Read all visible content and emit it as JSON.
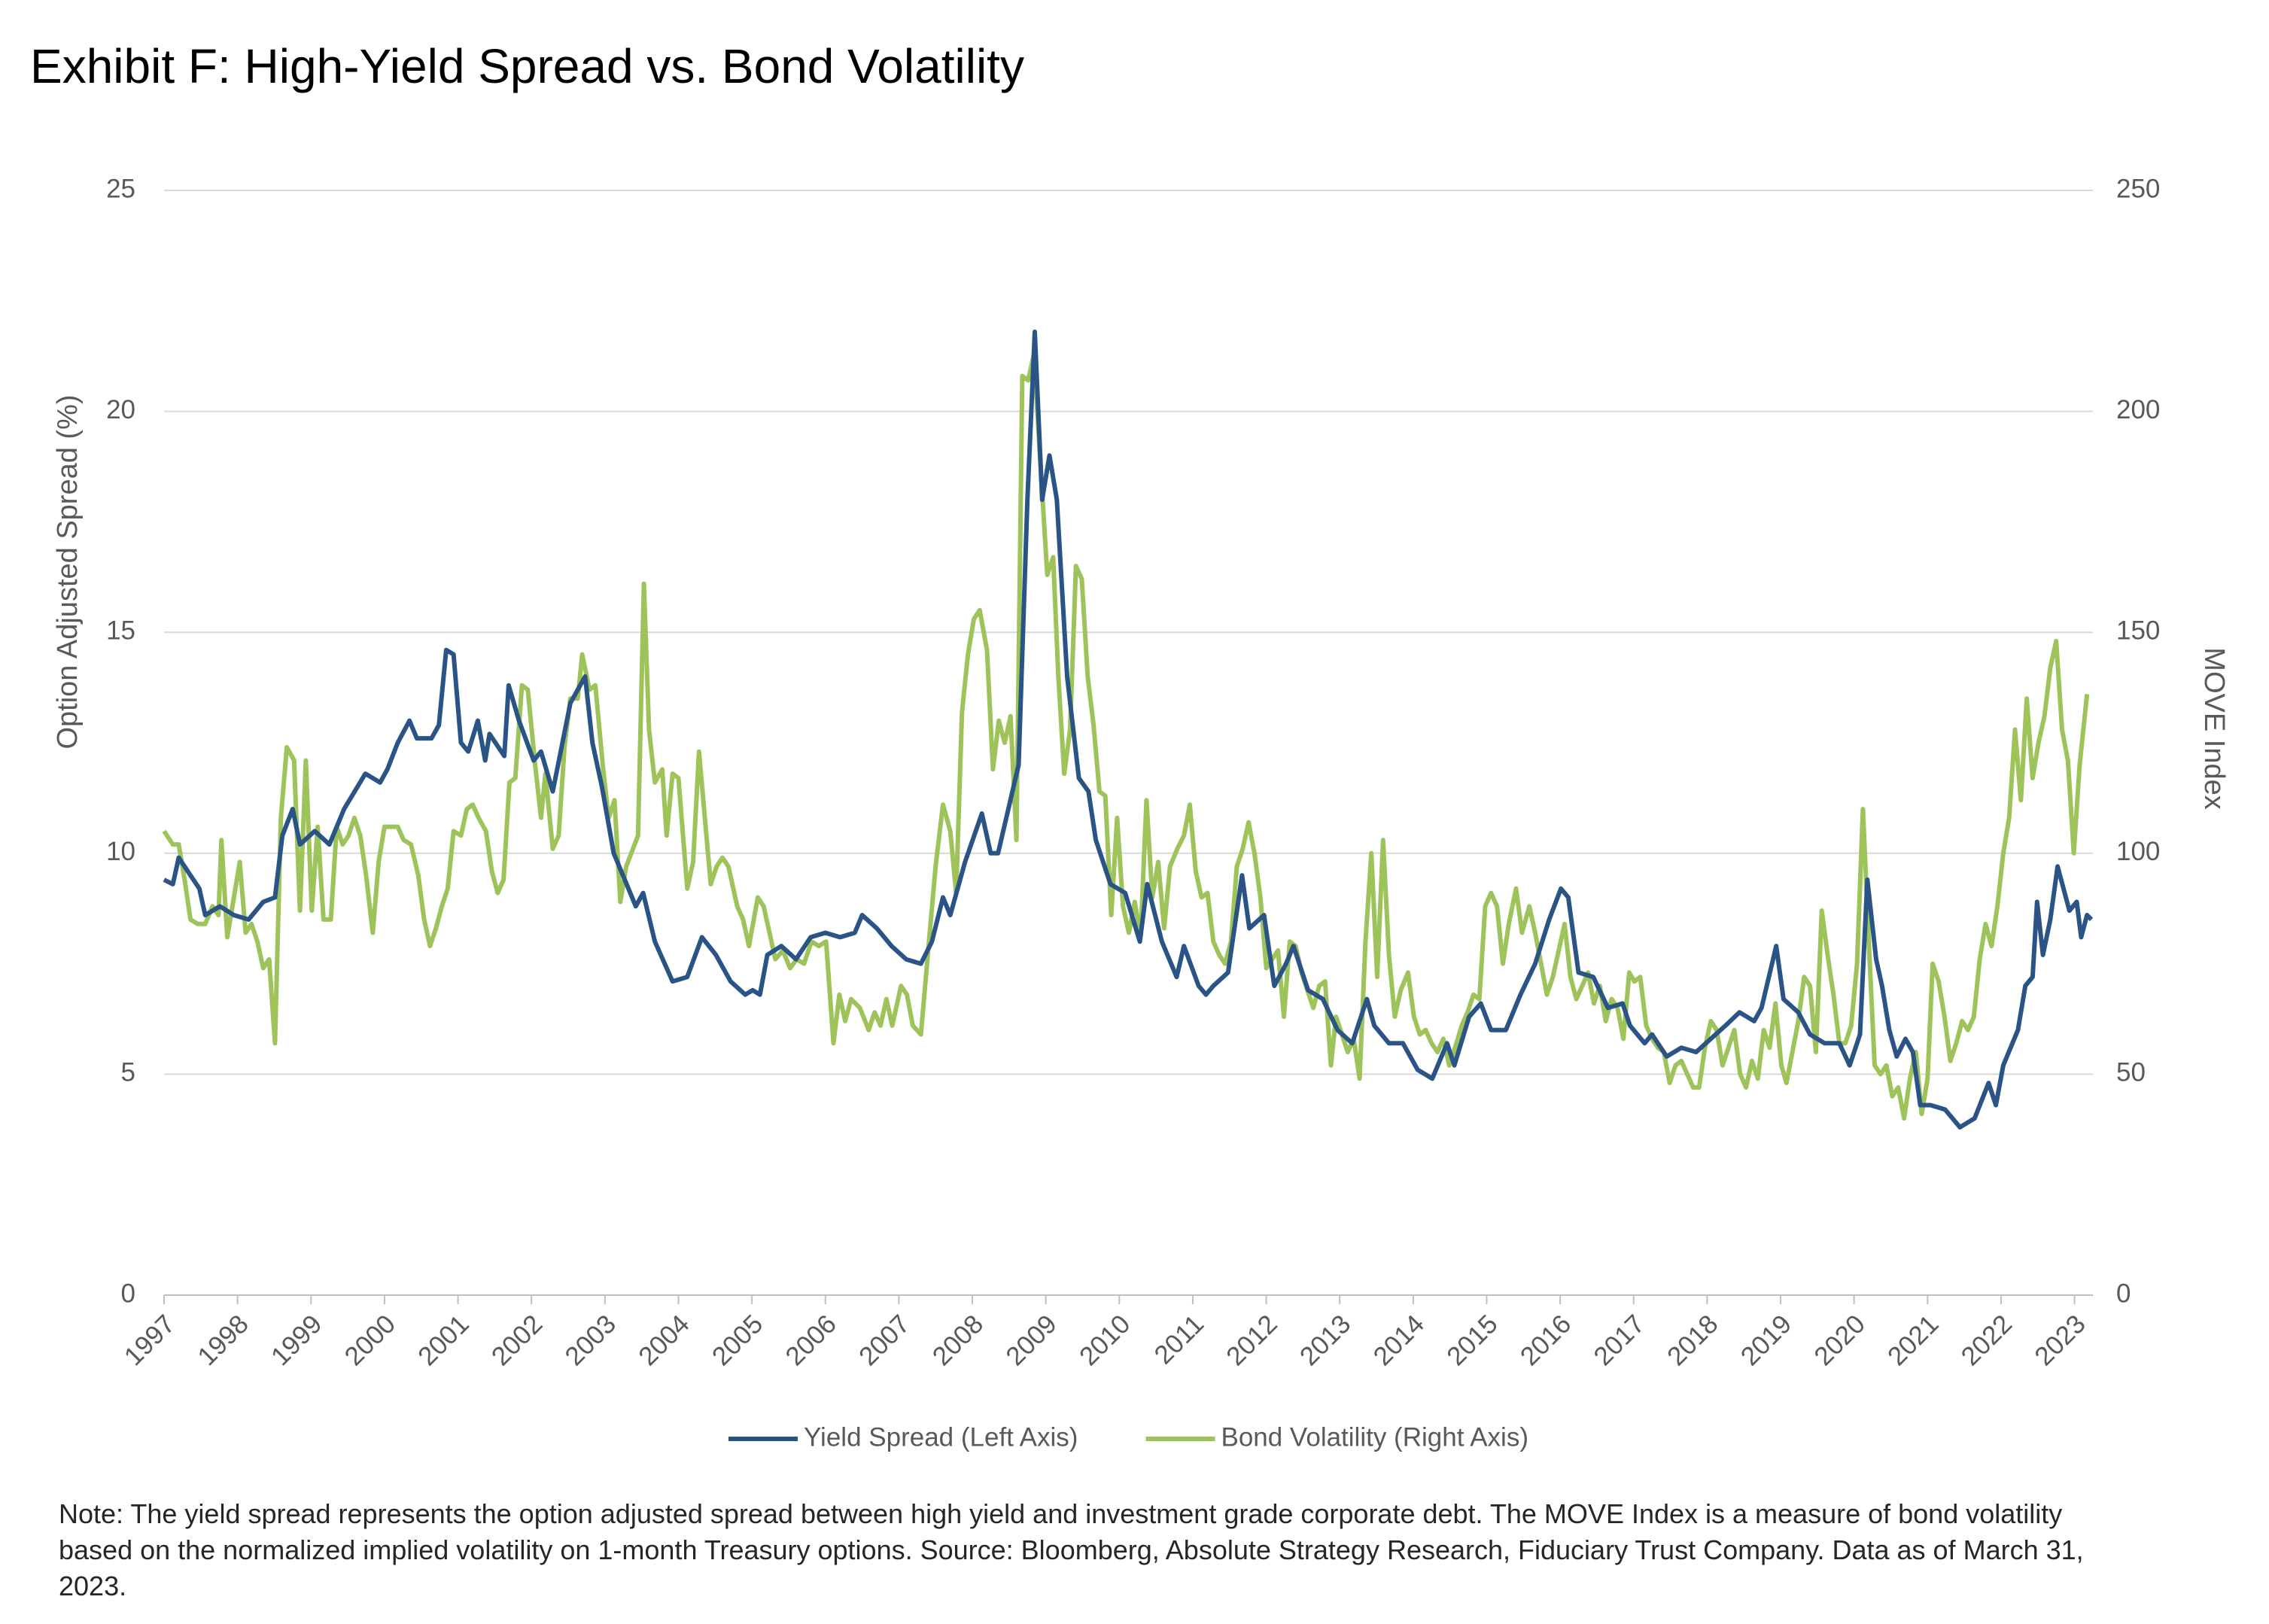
{
  "chart_data": {
    "type": "line",
    "title": "Exhibit F: High-Yield Spread vs. Bond Volatility",
    "y_label": "Option Adjusted Spread (%)",
    "y2_label": "MOVE Index",
    "note": "Note: The yield spread represents the option adjusted spread between high yield and investment grade corporate debt. The MOVE Index is a measure of bond volatility based on the normalized implied volatility on 1-month Treasury options. Source: Bloomberg, Absolute Strategy Research, Fiduciary Trust Company. Data as of March 31, 2023.",
    "xlim": [
      1997,
      2023.25
    ],
    "xticks": [
      1997,
      1998,
      1999,
      2000,
      2001,
      2002,
      2003,
      2004,
      2005,
      2006,
      2007,
      2008,
      2009,
      2010,
      2011,
      2012,
      2013,
      2014,
      2015,
      2016,
      2017,
      2018,
      2019,
      2020,
      2021,
      2022,
      2023
    ],
    "ylim": [
      0,
      25
    ],
    "yticks": [
      0,
      5,
      10,
      15,
      20,
      25
    ],
    "y2lim": [
      0,
      250
    ],
    "y2ticks": [
      0,
      50,
      100,
      150,
      200,
      250
    ],
    "grid": true,
    "legend": "bottom",
    "series": [
      {
        "name": "Yield Spread (Left Axis)",
        "color": "#2a5485",
        "axis": "y",
        "x": [
          1997.0,
          1997.12,
          1997.2,
          1997.36,
          1997.48,
          1997.56,
          1997.76,
          1997.95,
          1998.15,
          1998.35,
          1998.51,
          1998.61,
          1998.75,
          1998.85,
          1999.05,
          1999.25,
          1999.45,
          1999.74,
          1999.94,
          2000.04,
          2000.18,
          2000.34,
          2000.44,
          2000.64,
          2000.74,
          2000.84,
          2000.94,
          2001.04,
          2001.14,
          2001.27,
          2001.37,
          2001.43,
          2001.63,
          2001.69,
          2001.83,
          2002.03,
          2002.13,
          2002.29,
          2002.53,
          2002.73,
          2002.83,
          2002.96,
          2003.12,
          2003.32,
          2003.42,
          2003.52,
          2003.68,
          2003.92,
          2004.12,
          2004.32,
          2004.51,
          2004.71,
          2004.91,
          2005.01,
          2005.11,
          2005.21,
          2005.4,
          2005.6,
          2005.8,
          2006.0,
          2006.2,
          2006.4,
          2006.5,
          2006.7,
          2006.9,
          2007.1,
          2007.3,
          2007.45,
          2007.6,
          2007.7,
          2007.9,
          2008.13,
          2008.25,
          2008.35,
          2008.49,
          2008.63,
          2008.75,
          2008.85,
          2008.95,
          2009.05,
          2009.15,
          2009.29,
          2009.45,
          2009.58,
          2009.68,
          2009.88,
          2010.08,
          2010.28,
          2010.38,
          2010.58,
          2010.78,
          2010.88,
          2011.08,
          2011.18,
          2011.28,
          2011.48,
          2011.67,
          2011.77,
          2011.97,
          2012.11,
          2012.27,
          2012.37,
          2012.57,
          2012.77,
          2012.97,
          2013.17,
          2013.37,
          2013.47,
          2013.67,
          2013.86,
          2014.06,
          2014.26,
          2014.46,
          2014.56,
          2014.76,
          2014.92,
          2015.06,
          2015.26,
          2015.46,
          2015.66,
          2015.85,
          2016.01,
          2016.11,
          2016.25,
          2016.45,
          2016.65,
          2016.85,
          2016.95,
          2017.15,
          2017.25,
          2017.45,
          2017.65,
          2017.85,
          2018.05,
          2018.25,
          2018.44,
          2018.64,
          2018.74,
          2018.94,
          2019.04,
          2019.24,
          2019.4,
          2019.6,
          2019.8,
          2019.94,
          2020.08,
          2020.18,
          2020.3,
          2020.38,
          2020.48,
          2020.58,
          2020.7,
          2020.8,
          2020.9,
          2021.04,
          2021.24,
          2021.44,
          2021.64,
          2021.83,
          2021.93,
          2022.03,
          2022.23,
          2022.33,
          2022.43,
          2022.49,
          2022.57,
          2022.67,
          2022.77,
          2022.93,
          2023.03,
          2023.09,
          2023.17,
          2023.23
        ],
        "values": [
          9.4,
          9.3,
          9.9,
          9.5,
          9.2,
          8.6,
          8.8,
          8.6,
          8.5,
          8.9,
          9.0,
          10.4,
          11.0,
          10.2,
          10.5,
          10.2,
          11.0,
          11.8,
          11.6,
          11.9,
          12.5,
          13.0,
          12.6,
          12.6,
          12.9,
          14.6,
          14.5,
          12.5,
          12.3,
          13.0,
          12.1,
          12.7,
          12.2,
          13.8,
          13.0,
          12.1,
          12.3,
          11.4,
          13.4,
          14.0,
          12.5,
          11.5,
          10.0,
          9.2,
          8.8,
          9.1,
          8.0,
          7.1,
          7.2,
          8.1,
          7.7,
          7.1,
          6.8,
          6.9,
          6.8,
          7.7,
          7.9,
          7.6,
          8.1,
          8.2,
          8.1,
          8.2,
          8.6,
          8.3,
          7.9,
          7.6,
          7.5,
          8.0,
          9.0,
          8.6,
          9.8,
          10.9,
          10.0,
          10.0,
          11.0,
          12.0,
          18.0,
          21.8,
          18.0,
          19.0,
          18.0,
          14.0,
          11.7,
          11.4,
          10.3,
          9.3,
          9.1,
          8.0,
          9.3,
          8.0,
          7.2,
          7.9,
          7.0,
          6.8,
          7.0,
          7.3,
          9.5,
          8.3,
          8.6,
          7.0,
          7.5,
          7.9,
          6.9,
          6.7,
          6.0,
          5.7,
          6.7,
          6.1,
          5.7,
          5.7,
          5.1,
          4.9,
          5.7,
          5.2,
          6.3,
          6.6,
          6.0,
          6.0,
          6.8,
          7.5,
          8.5,
          9.2,
          9.0,
          7.3,
          7.2,
          6.5,
          6.6,
          6.1,
          5.7,
          5.9,
          5.4,
          5.6,
          5.5,
          5.8,
          6.1,
          6.4,
          6.2,
          6.5,
          7.9,
          6.7,
          6.4,
          5.9,
          5.7,
          5.7,
          5.2,
          5.9,
          9.4,
          7.6,
          7.0,
          6.0,
          5.4,
          5.8,
          5.5,
          4.3,
          4.3,
          4.2,
          3.8,
          4.0,
          4.8,
          4.3,
          5.2,
          6.0,
          7.0,
          7.2,
          8.9,
          7.7,
          8.5,
          9.7,
          8.7,
          8.9,
          8.1,
          8.6,
          8.5
        ]
      },
      {
        "name": "Bond Volatility (Right Axis)",
        "color": "#9dc35a",
        "axis": "y2",
        "x": [
          1997.0,
          1997.12,
          1997.2,
          1997.28,
          1997.36,
          1997.46,
          1997.56,
          1997.66,
          1997.74,
          1997.78,
          1997.86,
          1997.95,
          1998.03,
          1998.11,
          1998.19,
          1998.27,
          1998.35,
          1998.43,
          1998.51,
          1998.59,
          1998.67,
          1998.77,
          1998.85,
          1998.93,
          1999.01,
          1999.09,
          1999.17,
          1999.27,
          1999.35,
          1999.43,
          1999.51,
          1999.59,
          1999.67,
          1999.75,
          1999.84,
          1999.92,
          2000.0,
          2000.1,
          2000.18,
          2000.26,
          2000.36,
          2000.46,
          2000.54,
          2000.62,
          2000.7,
          2000.78,
          2000.86,
          2000.94,
          2001.04,
          2001.12,
          2001.2,
          2001.28,
          2001.38,
          2001.46,
          2001.54,
          2001.62,
          2001.7,
          2001.78,
          2001.87,
          2001.95,
          2002.05,
          2002.13,
          2002.19,
          2002.29,
          2002.37,
          2002.45,
          2002.53,
          2002.63,
          2002.69,
          2002.79,
          2002.87,
          2002.97,
          2003.05,
          2003.13,
          2003.21,
          2003.29,
          2003.45,
          2003.53,
          2003.6,
          2003.68,
          2003.78,
          2003.84,
          2003.92,
          2004.0,
          2004.12,
          2004.2,
          2004.28,
          2004.36,
          2004.44,
          2004.52,
          2004.6,
          2004.68,
          2004.8,
          2004.88,
          2004.96,
          2005.08,
          2005.16,
          2005.24,
          2005.32,
          2005.42,
          2005.52,
          2005.61,
          2005.71,
          2005.81,
          2005.91,
          2006.01,
          2006.11,
          2006.19,
          2006.27,
          2006.35,
          2006.47,
          2006.59,
          2006.67,
          2006.75,
          2006.83,
          2006.91,
          2007.03,
          2007.11,
          2007.19,
          2007.3,
          2007.42,
          2007.5,
          2007.6,
          2007.7,
          2007.78,
          2007.86,
          2007.94,
          2008.02,
          2008.1,
          2008.2,
          2008.28,
          2008.36,
          2008.44,
          2008.52,
          2008.6,
          2008.68,
          2008.76,
          2008.84,
          2008.92,
          2009.02,
          2009.1,
          2009.17,
          2009.25,
          2009.33,
          2009.41,
          2009.49,
          2009.57,
          2009.65,
          2009.73,
          2009.81,
          2009.89,
          2009.97,
          2010.05,
          2010.13,
          2010.21,
          2010.29,
          2010.37,
          2010.45,
          2010.53,
          2010.61,
          2010.69,
          2010.79,
          2010.88,
          2010.96,
          2011.04,
          2011.12,
          2011.2,
          2011.28,
          2011.36,
          2011.44,
          2011.52,
          2011.6,
          2011.68,
          2011.76,
          2011.84,
          2011.92,
          2012.0,
          2012.08,
          2012.16,
          2012.24,
          2012.32,
          2012.4,
          2012.48,
          2012.56,
          2012.64,
          2012.72,
          2012.8,
          2012.88,
          2012.95,
          2013.03,
          2013.11,
          2013.19,
          2013.27,
          2013.35,
          2013.43,
          2013.51,
          2013.59,
          2013.67,
          2013.75,
          2013.83,
          2013.93,
          2014.01,
          2014.09,
          2014.17,
          2014.25,
          2014.33,
          2014.41,
          2014.49,
          2014.57,
          2014.66,
          2014.74,
          2014.82,
          2014.9,
          2014.98,
          2015.06,
          2015.14,
          2015.22,
          2015.3,
          2015.4,
          2015.48,
          2015.58,
          2015.66,
          2015.74,
          2015.82,
          2015.9,
          2015.98,
          2016.06,
          2016.14,
          2016.22,
          2016.3,
          2016.38,
          2016.46,
          2016.54,
          2016.62,
          2016.7,
          2016.78,
          2016.86,
          2016.94,
          2017.01,
          2017.09,
          2017.17,
          2017.25,
          2017.33,
          2017.41,
          2017.49,
          2017.57,
          2017.65,
          2017.73,
          2017.81,
          2017.89,
          2017.97,
          2018.05,
          2018.13,
          2018.21,
          2018.29,
          2018.37,
          2018.45,
          2018.53,
          2018.61,
          2018.69,
          2018.77,
          2018.85,
          2018.93,
          2019.01,
          2019.08,
          2019.16,
          2019.24,
          2019.32,
          2019.4,
          2019.48,
          2019.56,
          2019.64,
          2019.72,
          2019.8,
          2019.88,
          2019.96,
          2020.04,
          2020.12,
          2020.2,
          2020.28,
          2020.36,
          2020.44,
          2020.52,
          2020.6,
          2020.68,
          2020.76,
          2020.84,
          2020.92,
          2021.0,
          2021.07,
          2021.15,
          2021.23,
          2021.31,
          2021.39,
          2021.47,
          2021.55,
          2021.63,
          2021.71,
          2021.79,
          2021.87,
          2021.95,
          2022.03,
          2022.11,
          2022.19,
          2022.27,
          2022.35,
          2022.43,
          2022.51,
          2022.59,
          2022.67,
          2022.75,
          2022.83,
          2022.91,
          2022.99,
          2023.07,
          2023.17
        ],
        "values": [
          105,
          102,
          102,
          94,
          85,
          84,
          84,
          88,
          86,
          103,
          81,
          90,
          98,
          82,
          84,
          80,
          74,
          76,
          57,
          108,
          124,
          121,
          87,
          121,
          87,
          106,
          85,
          85,
          106,
          102,
          104,
          108,
          104,
          95,
          82,
          98,
          106,
          106,
          106,
          103,
          102,
          95,
          85,
          79,
          83,
          88,
          92,
          105,
          104,
          110,
          111,
          108,
          105,
          96,
          91,
          94,
          116,
          117,
          138,
          137,
          120,
          108,
          118,
          101,
          104,
          124,
          135,
          135,
          145,
          137,
          138,
          120,
          108,
          112,
          89,
          97,
          104,
          161,
          128,
          116,
          119,
          104,
          118,
          117,
          92,
          98,
          123,
          108,
          93,
          97,
          99,
          97,
          88,
          85,
          79,
          90,
          88,
          82,
          76,
          78,
          74,
          76,
          75,
          80,
          79,
          80,
          57,
          68,
          62,
          67,
          65,
          60,
          64,
          61,
          67,
          61,
          70,
          68,
          61,
          59,
          82,
          97,
          111,
          105,
          91,
          132,
          145,
          153,
          155,
          146,
          119,
          130,
          125,
          131,
          103,
          208,
          207,
          213,
          190,
          163,
          167,
          140,
          118,
          128,
          165,
          162,
          140,
          129,
          114,
          113,
          86,
          108,
          88,
          82,
          89,
          81,
          112,
          90,
          98,
          83,
          97,
          101,
          104,
          111,
          96,
          90,
          91,
          80,
          77,
          75,
          80,
          97,
          101,
          107,
          100,
          90,
          74,
          76,
          78,
          63,
          80,
          79,
          73,
          69,
          65,
          70,
          71,
          52,
          63,
          59,
          55,
          58,
          49,
          80,
          100,
          72,
          103,
          77,
          63,
          69,
          73,
          63,
          59,
          60,
          57,
          55,
          58,
          52,
          56,
          61,
          64,
          68,
          67,
          88,
          91,
          88,
          75,
          84,
          92,
          82,
          88,
          82,
          75,
          68,
          72,
          78,
          84,
          72,
          67,
          70,
          73,
          66,
          70,
          62,
          67,
          65,
          58,
          73,
          71,
          72,
          61,
          58,
          56,
          55,
          48,
          52,
          53,
          50,
          47,
          47,
          56,
          62,
          60,
          52,
          56,
          60,
          50,
          47,
          53,
          49,
          60,
          56,
          66,
          52,
          48,
          55,
          62,
          72,
          70,
          55,
          87,
          77,
          68,
          57,
          57,
          61,
          75,
          110,
          80,
          52,
          50,
          52,
          45,
          47,
          40,
          49,
          55,
          41,
          49,
          75,
          71,
          63,
          53,
          57,
          62,
          60,
          63,
          76,
          84,
          79,
          88,
          100,
          108,
          128,
          112,
          135,
          117,
          125,
          131,
          142,
          148,
          128,
          121,
          100,
          120,
          136
        ]
      }
    ]
  }
}
